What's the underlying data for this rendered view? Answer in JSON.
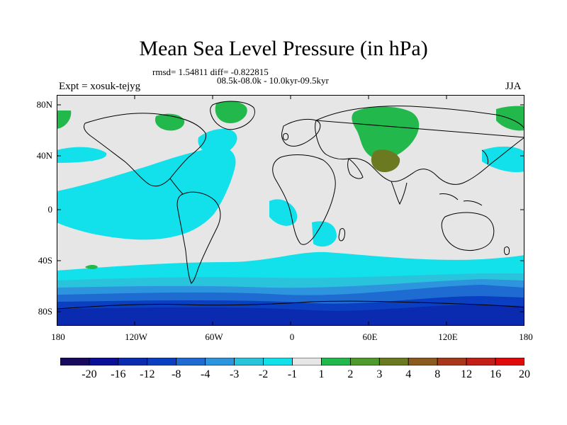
{
  "title": "Mean Sea Level Pressure (in hPa)",
  "stats": "rmsd= 1.54811 diff= -0.822815",
  "period": "08.5k-08.0k - 10.0kyr-09.5kyr",
  "experiment": "Expt = xosuk-tejyg",
  "season": "JJA",
  "lat_labels": [
    "80N",
    "40N",
    "0",
    "40S",
    "80S"
  ],
  "lon_labels": [
    "180",
    "120W",
    "60W",
    "0",
    "60E",
    "120E",
    "180"
  ],
  "colorbar": {
    "labels": [
      "-20",
      "-16",
      "-12",
      "-8",
      "-4",
      "-3",
      "-2",
      "-1",
      "1",
      "2",
      "3",
      "4",
      "8",
      "12",
      "16",
      "20"
    ],
    "colors": [
      "#1a0a5e",
      "#0a0f96",
      "#0a2ab0",
      "#0a3fc2",
      "#1e6bd2",
      "#2d95de",
      "#29c4dc",
      "#12e0ea",
      "#e6e6e6",
      "#22b84c",
      "#4f9a2c",
      "#6b7a20",
      "#8a5a1e",
      "#a8381a",
      "#c21f16",
      "#e00a0a"
    ]
  }
}
